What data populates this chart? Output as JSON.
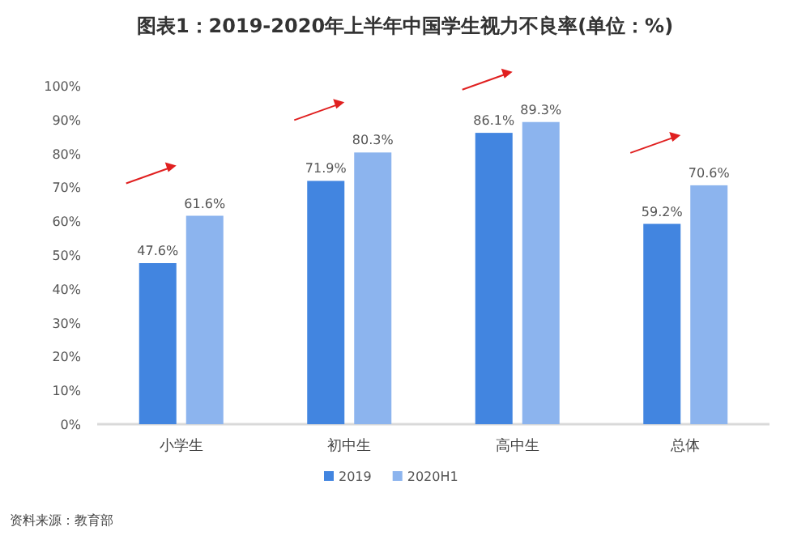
{
  "chart_data": {
    "type": "bar",
    "title": "图表1：2019-2020年上半年中国学生视力不良率(单位：%)",
    "categories": [
      "小学生",
      "初中生",
      "高中生",
      "总体"
    ],
    "series": [
      {
        "name": "2019",
        "color": "#4285e0",
        "values": [
          47.6,
          71.9,
          86.1,
          59.2
        ],
        "value_labels": [
          "47.6%",
          "71.9%",
          "86.1%",
          "59.2%"
        ]
      },
      {
        "name": "2020H1",
        "color": "#8cb4ee",
        "values": [
          61.6,
          80.3,
          89.3,
          70.6
        ],
        "value_labels": [
          "61.6%",
          "80.3%",
          "89.3%",
          "70.6%"
        ]
      }
    ],
    "ylim": [
      0,
      100
    ],
    "yticks": [
      {
        "value": 0,
        "label": "0%"
      },
      {
        "value": 10,
        "label": "10%"
      },
      {
        "value": 20,
        "label": "20%"
      },
      {
        "value": 30,
        "label": "30%"
      },
      {
        "value": 40,
        "label": "40%"
      },
      {
        "value": 50,
        "label": "50%"
      },
      {
        "value": 60,
        "label": "60%"
      },
      {
        "value": 70,
        "label": "70%"
      },
      {
        "value": 80,
        "label": "80%"
      },
      {
        "value": 90,
        "label": "90%"
      },
      {
        "value": 100,
        "label": "100%"
      }
    ],
    "grid": false,
    "legend": "bottom",
    "annotations": [
      "资料来源：教育部"
    ]
  }
}
